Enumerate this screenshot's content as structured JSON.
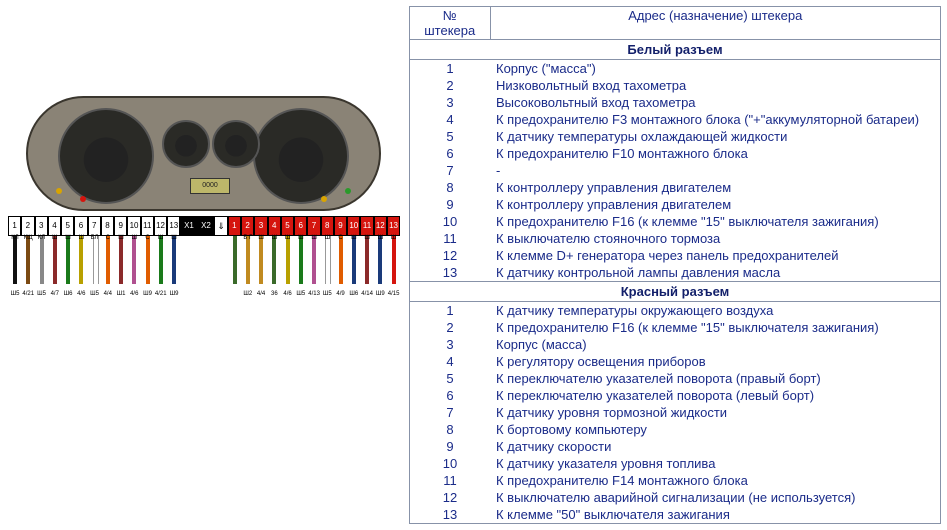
{
  "headers": {
    "num": "№ штекера",
    "addr": "Адрес (назначение) штекера"
  },
  "sections": [
    {
      "title": "Белый разъем",
      "rows": [
        {
          "n": "1",
          "d": "Корпус (\"масса\")"
        },
        {
          "n": "2",
          "d": "Низковольтный вход тахометра"
        },
        {
          "n": "3",
          "d": "Высоковольтный вход тахометра"
        },
        {
          "n": "4",
          "d": "К предохранителю F3 монтажного блока (\"+\"аккумуляторной батареи)"
        },
        {
          "n": "5",
          "d": "К датчику температуры охлаждающей жидкости"
        },
        {
          "n": "6",
          "d": "К предохранителю F10 монтажного блока"
        },
        {
          "n": "7",
          "d": "-"
        },
        {
          "n": "8",
          "d": "К контроллеру управления двигателем"
        },
        {
          "n": "9",
          "d": "К контроллеру управления двигателем"
        },
        {
          "n": "10",
          "d": "К предохранителю F16 (к клемме \"15\" выключателя зажигания)"
        },
        {
          "n": "11",
          "d": "К выключателю стояночного тормоза"
        },
        {
          "n": "12",
          "d": "К клемме D+ генератора через панель предохранителей"
        },
        {
          "n": "13",
          "d": "К датчику контрольной лампы давления масла"
        }
      ]
    },
    {
      "title": "Красный разъем",
      "rows": [
        {
          "n": "1",
          "d": "К датчику температуры окружающего воздуха"
        },
        {
          "n": "2",
          "d": "К предохранителю F16 (к клемме \"15\" выключателя зажигания)"
        },
        {
          "n": "3",
          "d": "Корпус (масса)"
        },
        {
          "n": "4",
          "d": "К регулятору освещения приборов"
        },
        {
          "n": "5",
          "d": "К переключателю указателей поворота (правый борт)"
        },
        {
          "n": "6",
          "d": "К переключателю указателей поворота (левый борт)"
        },
        {
          "n": "7",
          "d": "К датчику уровня тормозной жидкости"
        },
        {
          "n": "8",
          "d": "К бортовому компьютеру"
        },
        {
          "n": "9",
          "d": "К датчику скорости"
        },
        {
          "n": "10",
          "d": "К датчику указателя уровня топлива"
        },
        {
          "n": "11",
          "d": "К предохранителю F14 монтажного блока"
        },
        {
          "n": "12",
          "d": "К выключателю аварийной сигнализации (не используется)"
        },
        {
          "n": "13",
          "d": "К клемме \"50\" выключателя зажигания"
        }
      ]
    }
  ],
  "connectors": {
    "white": {
      "label": "Х1",
      "pins": [
        "1",
        "2",
        "3",
        "4",
        "5",
        "6",
        "7",
        "8",
        "9",
        "10",
        "11",
        "12",
        "13"
      ]
    },
    "red": {
      "label": "Х2",
      "pins": [
        "1",
        "2",
        "3",
        "4",
        "5",
        "6",
        "7",
        "8",
        "9",
        "10",
        "11",
        "12",
        "13"
      ]
    }
  },
  "wires_white": [
    {
      "c": "#111111",
      "t": "КЛ",
      "b": "Ш5"
    },
    {
      "c": "#7b4a12",
      "t": "КЩ",
      "b": "4/21"
    },
    {
      "c": "#888888",
      "t": "КЛ",
      "b": "Ш5"
    },
    {
      "c": "#8b2a2a",
      "t": "Ш",
      "b": "4/7"
    },
    {
      "c": "#1a7a1a",
      "t": "Ш",
      "b": "Ш6"
    },
    {
      "c": "#b8a000",
      "t": "Ш",
      "b": "4/6"
    },
    {
      "c": "#ffffff",
      "t": "БЛ",
      "b": "Ш5"
    },
    {
      "c": "#e05c00",
      "t": "С",
      "b": "4/4"
    },
    {
      "c": "#8b2a2a",
      "t": "Ш",
      "b": "Ш1"
    },
    {
      "c": "#b05090",
      "t": "Ш",
      "b": "4/6"
    },
    {
      "c": "#e05c00",
      "t": "С",
      "b": "Ш9"
    },
    {
      "c": "#1a7a1a",
      "t": "Ш",
      "b": "4/21"
    },
    {
      "c": "#1a3a7a",
      "t": "Ш",
      "b": "Ш9"
    }
  ],
  "wires_red": [
    {
      "c": "#3a6a2a",
      "t": "",
      "b": ""
    },
    {
      "c": "#c08a20",
      "t": "Б Г",
      "b": "Ш2"
    },
    {
      "c": "#c08a20",
      "t": "Ш",
      "b": "4/4"
    },
    {
      "c": "#3a6a2a",
      "t": "Ш",
      "b": "36"
    },
    {
      "c": "#b8a000",
      "t": "Ш",
      "b": "4/6"
    },
    {
      "c": "#1a7a1a",
      "t": "Ш",
      "b": "Ш5"
    },
    {
      "c": "#b05090",
      "t": "Ш",
      "b": "4/13"
    },
    {
      "c": "#ffffff",
      "t": "Ш",
      "b": "Ш5"
    },
    {
      "c": "#e05c00",
      "t": "С",
      "b": "4/9"
    },
    {
      "c": "#1a3a7a",
      "t": "Ш",
      "b": "Ш6"
    },
    {
      "c": "#8b2a2a",
      "t": "Ш",
      "b": "4/14"
    },
    {
      "c": "#1a3a7a",
      "t": "Ш",
      "b": "Ш9"
    },
    {
      "c": "#d5150e",
      "t": "Ш",
      "b": "4/15"
    }
  ],
  "lcd": "0000",
  "colors": {
    "border": "#8792a8",
    "text": "#1a2b89",
    "red_pin": "#d5150e"
  }
}
